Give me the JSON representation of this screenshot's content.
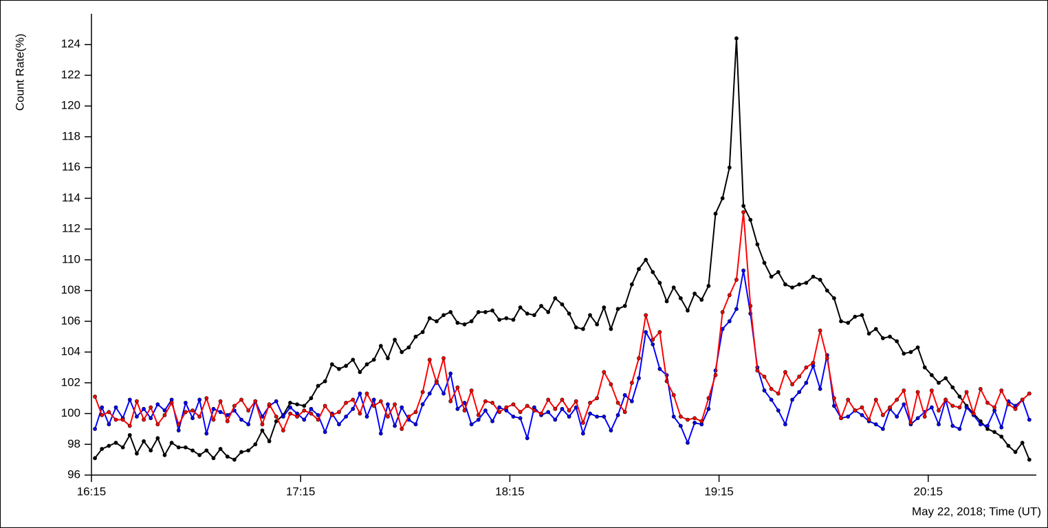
{
  "chart_data": {
    "type": "line",
    "y_label": "Count Rate(%)",
    "x_label": "May 22, 2018; Time (UT)",
    "x": [
      "16:16",
      "16:18",
      "16:20",
      "16:22",
      "16:24",
      "16:26",
      "16:28",
      "16:30",
      "16:32",
      "16:34",
      "16:36",
      "16:38",
      "16:40",
      "16:42",
      "16:44",
      "16:46",
      "16:48",
      "16:50",
      "16:52",
      "16:54",
      "16:56",
      "16:58",
      "17:00",
      "17:02",
      "17:04",
      "17:06",
      "17:08",
      "17:10",
      "17:12",
      "17:14",
      "17:16",
      "17:18",
      "17:20",
      "17:22",
      "17:24",
      "17:26",
      "17:28",
      "17:30",
      "17:32",
      "17:34",
      "17:36",
      "17:38",
      "17:40",
      "17:42",
      "17:44",
      "17:46",
      "17:48",
      "17:50",
      "17:52",
      "17:54",
      "17:56",
      "17:58",
      "18:00",
      "18:02",
      "18:04",
      "18:06",
      "18:08",
      "18:10",
      "18:12",
      "18:14",
      "18:16",
      "18:18",
      "18:20",
      "18:22",
      "18:24",
      "18:26",
      "18:28",
      "18:30",
      "18:32",
      "18:34",
      "18:36",
      "18:38",
      "18:40",
      "18:42",
      "18:44",
      "18:46",
      "18:48",
      "18:50",
      "18:52",
      "18:54",
      "18:56",
      "18:58",
      "19:00",
      "19:02",
      "19:04",
      "19:06",
      "19:08",
      "19:10",
      "19:12",
      "19:14",
      "19:16",
      "19:18",
      "19:20",
      "19:22",
      "19:24",
      "19:26",
      "19:28",
      "19:30",
      "19:32",
      "19:34",
      "19:36",
      "19:38",
      "19:40",
      "19:42",
      "19:44",
      "19:46",
      "19:48",
      "19:50",
      "19:52",
      "19:54",
      "19:56",
      "19:58",
      "20:00",
      "20:02",
      "20:04",
      "20:06",
      "20:08",
      "20:10",
      "20:12",
      "20:14",
      "20:16",
      "20:18",
      "20:20",
      "20:22",
      "20:24",
      "20:26",
      "20:28",
      "20:30",
      "20:32",
      "20:34",
      "20:36",
      "20:38",
      "20:40",
      "20:42",
      "20:44"
    ],
    "series": [
      {
        "color": "#000000",
        "values": [
          97.1,
          97.7,
          97.9,
          98.1,
          97.8,
          98.6,
          97.4,
          98.2,
          97.6,
          98.4,
          97.3,
          98.1,
          97.8,
          97.8,
          97.6,
          97.3,
          97.6,
          97.1,
          97.7,
          97.2,
          97.0,
          97.5,
          97.6,
          98.0,
          98.9,
          98.2,
          99.5,
          99.9,
          100.7,
          100.6,
          100.5,
          101.0,
          101.8,
          102.1,
          103.2,
          102.9,
          103.1,
          103.5,
          102.7,
          103.2,
          103.5,
          104.4,
          103.6,
          104.8,
          104.0,
          104.3,
          105.0,
          105.3,
          106.2,
          106.0,
          106.4,
          106.6,
          105.9,
          105.8,
          106.0,
          106.6,
          106.6,
          106.7,
          106.1,
          106.2,
          106.1,
          106.9,
          106.5,
          106.4,
          107.0,
          106.6,
          107.5,
          107.1,
          106.5,
          105.6,
          105.5,
          106.4,
          105.8,
          106.9,
          105.5,
          106.8,
          107.0,
          108.4,
          109.4,
          110.0,
          109.2,
          108.5,
          107.3,
          108.2,
          107.5,
          106.7,
          107.8,
          107.4,
          108.3,
          113.0,
          114.0,
          116.0,
          124.4,
          113.5,
          112.6,
          111.0,
          109.8,
          108.9,
          109.2,
          108.4,
          108.2,
          108.4,
          108.5,
          108.9,
          108.7,
          108.0,
          107.5,
          106.0,
          105.9,
          106.3,
          106.4,
          105.2,
          105.5,
          104.9,
          105.0,
          104.7,
          103.9,
          104.0,
          104.3,
          103.0,
          102.5,
          102.0,
          102.3,
          101.7,
          101.1,
          100.5,
          100.0,
          99.5,
          99.0,
          98.8,
          98.5,
          97.9,
          97.5,
          98.1,
          97.0
        ]
      },
      {
        "color": "#0000ff",
        "values": [
          99.0,
          100.4,
          99.3,
          100.4,
          99.7,
          100.9,
          99.8,
          100.3,
          99.7,
          100.6,
          100.2,
          100.9,
          98.9,
          100.7,
          99.7,
          100.9,
          98.7,
          100.3,
          100.1,
          99.9,
          100.2,
          99.6,
          99.3,
          100.8,
          99.8,
          100.5,
          100.8,
          99.8,
          100.4,
          100.0,
          99.6,
          100.3,
          99.9,
          98.8,
          100.0,
          99.3,
          99.8,
          100.3,
          101.3,
          99.8,
          100.9,
          98.7,
          100.6,
          99.2,
          100.4,
          99.6,
          99.3,
          100.6,
          101.3,
          102.1,
          101.3,
          102.6,
          100.3,
          100.7,
          99.3,
          99.6,
          100.2,
          99.5,
          100.4,
          100.2,
          99.8,
          99.7,
          98.4,
          100.4,
          99.9,
          100.1,
          99.6,
          100.3,
          99.8,
          100.4,
          98.7,
          100.0,
          99.8,
          99.8,
          98.9,
          99.9,
          101.2,
          100.8,
          102.3,
          105.3,
          104.5,
          102.9,
          102.5,
          99.8,
          99.2,
          98.1,
          99.4,
          99.3,
          100.3,
          102.8,
          105.5,
          106.0,
          106.8,
          109.3,
          106.5,
          103.0,
          101.5,
          100.9,
          100.2,
          99.3,
          100.9,
          101.4,
          102.0,
          103.1,
          101.6,
          103.8,
          100.5,
          99.7,
          99.8,
          100.2,
          99.9,
          99.5,
          99.3,
          99.0,
          100.3,
          99.8,
          100.6,
          99.3,
          99.7,
          100.1,
          100.4,
          99.3,
          100.9,
          99.2,
          99.0,
          100.4,
          99.9,
          99.3,
          99.2,
          100.2,
          99.1,
          100.8,
          100.5,
          100.9,
          99.6
        ]
      },
      {
        "color": "#ff0000",
        "values": [
          101.1,
          99.9,
          100.1,
          99.6,
          99.6,
          99.2,
          100.8,
          99.6,
          100.4,
          99.3,
          99.9,
          100.7,
          99.3,
          100.1,
          100.2,
          99.8,
          101.0,
          99.6,
          100.8,
          99.5,
          100.5,
          100.9,
          100.2,
          100.8,
          99.3,
          100.6,
          99.8,
          98.9,
          100.0,
          99.8,
          100.2,
          100.0,
          99.6,
          100.5,
          99.9,
          100.1,
          100.7,
          100.9,
          100.0,
          101.3,
          100.5,
          100.8,
          99.8,
          100.6,
          99.0,
          99.8,
          100.1,
          101.4,
          103.5,
          102.0,
          103.6,
          100.8,
          101.7,
          100.2,
          101.5,
          99.9,
          100.8,
          100.7,
          100.1,
          100.4,
          100.6,
          100.1,
          100.5,
          100.2,
          100.0,
          100.9,
          100.3,
          100.9,
          100.2,
          100.8,
          99.4,
          100.7,
          101.0,
          102.7,
          101.9,
          100.7,
          100.1,
          102.0,
          103.6,
          106.4,
          104.8,
          105.3,
          102.1,
          101.2,
          99.8,
          99.6,
          99.7,
          99.5,
          101.0,
          102.5,
          106.6,
          107.7,
          108.7,
          113.1,
          107.0,
          102.8,
          102.4,
          101.6,
          101.3,
          102.7,
          101.9,
          102.4,
          103.0,
          103.3,
          105.4,
          103.6,
          101.0,
          99.7,
          100.9,
          100.2,
          100.4,
          99.6,
          100.9,
          99.9,
          100.4,
          100.9,
          101.5,
          99.4,
          101.4,
          99.8,
          101.5,
          100.2,
          100.9,
          100.5,
          100.4,
          101.4,
          100.0,
          101.6,
          100.7,
          100.4,
          101.5,
          100.6,
          100.3,
          100.9,
          101.3
        ]
      }
    ],
    "xlim": [
      "16:15",
      "20:46"
    ],
    "xticks": [
      "16:15",
      "17:15",
      "18:15",
      "19:15",
      "20:15"
    ],
    "ylim": [
      96,
      126
    ],
    "yticks": [
      96,
      98,
      100,
      102,
      104,
      106,
      108,
      110,
      112,
      114,
      116,
      118,
      120,
      122,
      124
    ]
  }
}
